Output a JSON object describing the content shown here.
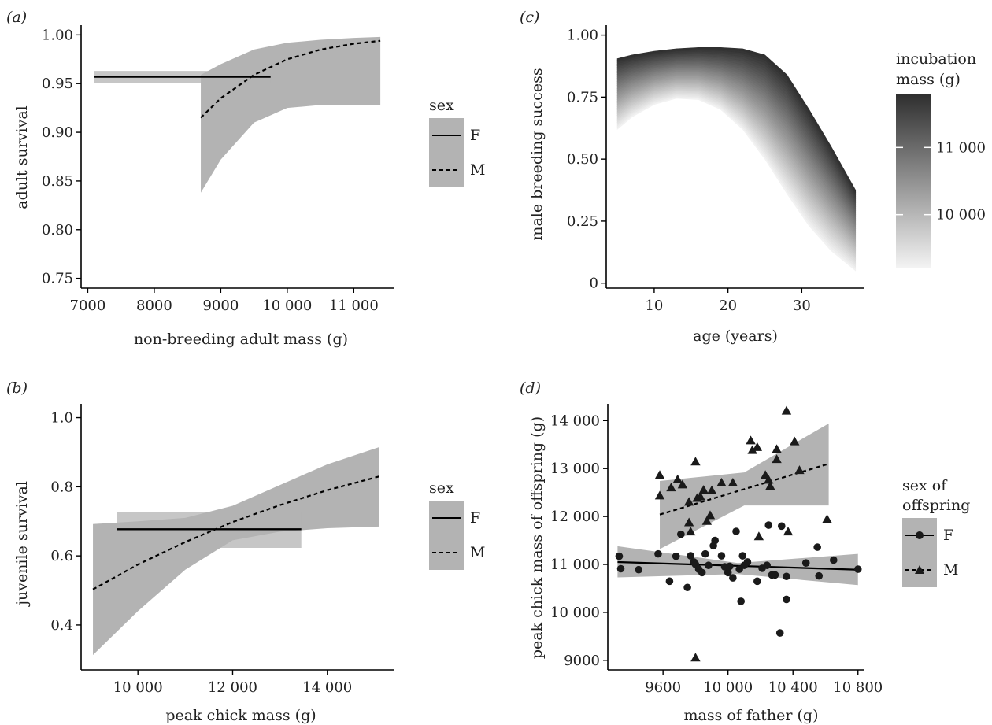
{
  "chart_data": [
    {
      "panel": "(a)",
      "type": "line",
      "xlabel": "non-breeding adult mass (g)",
      "ylabel": "adult survival",
      "xlim": [
        6900,
        11600
      ],
      "ylim": [
        0.74,
        1.01
      ],
      "xticks": [
        7000,
        8000,
        9000,
        10000,
        11000
      ],
      "xtick_labels": [
        "7000",
        "8000",
        "9000",
        "10 000",
        "11 000"
      ],
      "yticks": [
        0.75,
        0.8,
        0.85,
        0.9,
        0.95,
        1.0
      ],
      "ytick_labels": [
        "0.75",
        "0.80",
        "0.85",
        "0.90",
        "0.95",
        "1.00"
      ],
      "legend": {
        "title": "sex",
        "position": "right",
        "entries": [
          "F",
          "M"
        ]
      },
      "series": [
        {
          "name": "F",
          "linestyle": "solid",
          "x": [
            7100,
            9750
          ],
          "y": [
            0.957,
            0.957
          ],
          "lower": [
            0.951,
            0.951
          ],
          "upper": [
            0.963,
            0.963
          ]
        },
        {
          "name": "M",
          "linestyle": "dashed",
          "x": [
            8700,
            9000,
            9500,
            10000,
            10500,
            11000,
            11400
          ],
          "y": [
            0.915,
            0.935,
            0.959,
            0.975,
            0.985,
            0.991,
            0.994
          ],
          "lower": [
            0.838,
            0.872,
            0.91,
            0.925,
            0.928,
            0.928,
            0.928
          ],
          "upper": [
            0.959,
            0.97,
            0.985,
            0.992,
            0.995,
            0.997,
            0.998
          ]
        }
      ]
    },
    {
      "panel": "(b)",
      "type": "line",
      "xlabel": "peak chick mass (g)",
      "ylabel": "juvenile survival",
      "xlim": [
        8800,
        15400
      ],
      "ylim": [
        0.27,
        1.04
      ],
      "xticks": [
        10000,
        12000,
        14000
      ],
      "xtick_labels": [
        "10 000",
        "12 000",
        "14 000"
      ],
      "yticks": [
        0.4,
        0.6,
        0.8,
        1.0
      ],
      "ytick_labels": [
        "0.4",
        "0.6",
        "0.8",
        "1.0"
      ],
      "legend": {
        "title": "sex",
        "position": "right",
        "entries": [
          "F",
          "M"
        ]
      },
      "series": [
        {
          "name": "F",
          "linestyle": "solid",
          "x": [
            9550,
            13450
          ],
          "y": [
            0.677,
            0.677
          ],
          "lower": [
            0.623,
            0.623
          ],
          "upper": [
            0.727,
            0.727
          ]
        },
        {
          "name": "M",
          "linestyle": "dashed",
          "x": [
            9050,
            10000,
            11000,
            12000,
            13000,
            14000,
            15100
          ],
          "y": [
            0.503,
            0.575,
            0.64,
            0.698,
            0.747,
            0.79,
            0.83
          ],
          "lower": [
            0.313,
            0.44,
            0.56,
            0.645,
            0.67,
            0.68,
            0.685
          ],
          "upper": [
            0.692,
            0.7,
            0.71,
            0.745,
            0.805,
            0.865,
            0.915
          ]
        }
      ]
    },
    {
      "panel": "(c)",
      "type": "area",
      "xlabel": "age (years)",
      "ylabel": "male breeding success",
      "xlim": [
        3.5,
        38.5
      ],
      "ylim": [
        -0.02,
        1.04
      ],
      "xticks": [
        10,
        20,
        30
      ],
      "xtick_labels": [
        "10",
        "20",
        "30"
      ],
      "yticks": [
        0,
        0.25,
        0.5,
        0.75,
        1.0
      ],
      "ytick_labels": [
        "0",
        "0.25",
        "0.50",
        "0.75",
        "1.00"
      ],
      "x": [
        5,
        7,
        10,
        13,
        16,
        19,
        22,
        25,
        28,
        31,
        34,
        37.3
      ],
      "upper_curve": [
        0.905,
        0.92,
        0.935,
        0.945,
        0.95,
        0.95,
        0.945,
        0.92,
        0.84,
        0.7,
        0.55,
        0.375
      ],
      "lower_curve": [
        0.62,
        0.67,
        0.72,
        0.745,
        0.74,
        0.7,
        0.62,
        0.5,
        0.36,
        0.23,
        0.13,
        0.05
      ],
      "colorbar": {
        "title": [
          "incubation",
          "mass (g)"
        ],
        "range": [
          9200,
          11800
        ],
        "ticks": [
          10000,
          11000
        ],
        "tick_labels": [
          "10 000",
          "11 000"
        ],
        "low_color": "#f4f4f4",
        "high_color": "#2e2e2e"
      }
    },
    {
      "panel": "(d)",
      "type": "scatter",
      "xlabel": "mass of father (g)",
      "ylabel": "peak chick mass of offspring (g)",
      "xlim": [
        9260,
        10840
      ],
      "ylim": [
        8800,
        14350
      ],
      "xticks": [
        9600,
        10000,
        10400,
        10800
      ],
      "xtick_labels": [
        "9600",
        "10 000",
        "10 400",
        "10 800"
      ],
      "yticks": [
        9000,
        10000,
        11000,
        12000,
        13000,
        14000
      ],
      "ytick_labels": [
        "9000",
        "10 000",
        "11 000",
        "12 000",
        "13 000",
        "14 000"
      ],
      "legend": {
        "title": [
          "sex of",
          "offspring"
        ],
        "position": "right",
        "entries": [
          "F",
          "M"
        ]
      },
      "series": [
        {
          "name": "F",
          "marker": "circle",
          "linestyle": "solid",
          "fit": {
            "x": [
              9320,
              10800
            ],
            "y": [
              11050,
              10890
            ]
          },
          "band": {
            "x": [
              9320,
              10060,
              10800
            ],
            "lower": [
              10730,
              10800,
              10570
            ],
            "upper": [
              11380,
              11030,
              11220
            ]
          },
          "points": [
            [
              9330,
              11170
            ],
            [
              9340,
              10910
            ],
            [
              9450,
              10890
            ],
            [
              9570,
              11220
            ],
            [
              9640,
              10650
            ],
            [
              9680,
              11170
            ],
            [
              9710,
              11630
            ],
            [
              9750,
              10520
            ],
            [
              9770,
              11180
            ],
            [
              9790,
              11050
            ],
            [
              9800,
              11000
            ],
            [
              9820,
              10900
            ],
            [
              9840,
              10830
            ],
            [
              9860,
              11220
            ],
            [
              9880,
              10980
            ],
            [
              9910,
              11390
            ],
            [
              9920,
              11500
            ],
            [
              9960,
              11180
            ],
            [
              9980,
              10950
            ],
            [
              10000,
              10830
            ],
            [
              10010,
              10960
            ],
            [
              10030,
              10720
            ],
            [
              10050,
              11690
            ],
            [
              10070,
              10900
            ],
            [
              10080,
              10230
            ],
            [
              10090,
              11180
            ],
            [
              10100,
              10980
            ],
            [
              10120,
              11050
            ],
            [
              10180,
              10650
            ],
            [
              10210,
              10920
            ],
            [
              10240,
              10980
            ],
            [
              10250,
              11820
            ],
            [
              10270,
              10780
            ],
            [
              10290,
              10780
            ],
            [
              10320,
              9570
            ],
            [
              10330,
              11800
            ],
            [
              10360,
              10750
            ],
            [
              10360,
              10270
            ],
            [
              10480,
              11030
            ],
            [
              10550,
              11360
            ],
            [
              10560,
              10760
            ],
            [
              10650,
              11090
            ],
            [
              10800,
              10900
            ]
          ]
        },
        {
          "name": "M",
          "marker": "triangle",
          "linestyle": "dashed",
          "fit": {
            "x": [
              9580,
              10620
            ],
            "y": [
              12040,
              13100
            ]
          },
          "band": {
            "x": [
              9580,
              10100,
              10620
            ],
            "lower": [
              11320,
              12230,
              12230
            ],
            "upper": [
              12740,
              12920,
              13940
            ]
          },
          "points": [
            [
              9580,
              12860
            ],
            [
              9580,
              12430
            ],
            [
              9650,
              12600
            ],
            [
              9690,
              12770
            ],
            [
              9720,
              12660
            ],
            [
              9760,
              12300
            ],
            [
              9760,
              11870
            ],
            [
              9770,
              11680
            ],
            [
              9800,
              13140
            ],
            [
              9810,
              12380
            ],
            [
              9830,
              12410
            ],
            [
              9850,
              12550
            ],
            [
              9870,
              11900
            ],
            [
              9890,
              12020
            ],
            [
              9900,
              12540
            ],
            [
              9960,
              12700
            ],
            [
              10030,
              12700
            ],
            [
              10140,
              13580
            ],
            [
              10150,
              13380
            ],
            [
              10180,
              13440
            ],
            [
              10190,
              11580
            ],
            [
              10230,
              12860
            ],
            [
              10250,
              12760
            ],
            [
              10260,
              12630
            ],
            [
              10300,
              13400
            ],
            [
              10300,
              13190
            ],
            [
              10360,
              14200
            ],
            [
              10370,
              11680
            ],
            [
              10410,
              13560
            ],
            [
              10440,
              12960
            ],
            [
              10610,
              11940
            ],
            [
              9800,
              9050
            ]
          ]
        }
      ]
    }
  ]
}
